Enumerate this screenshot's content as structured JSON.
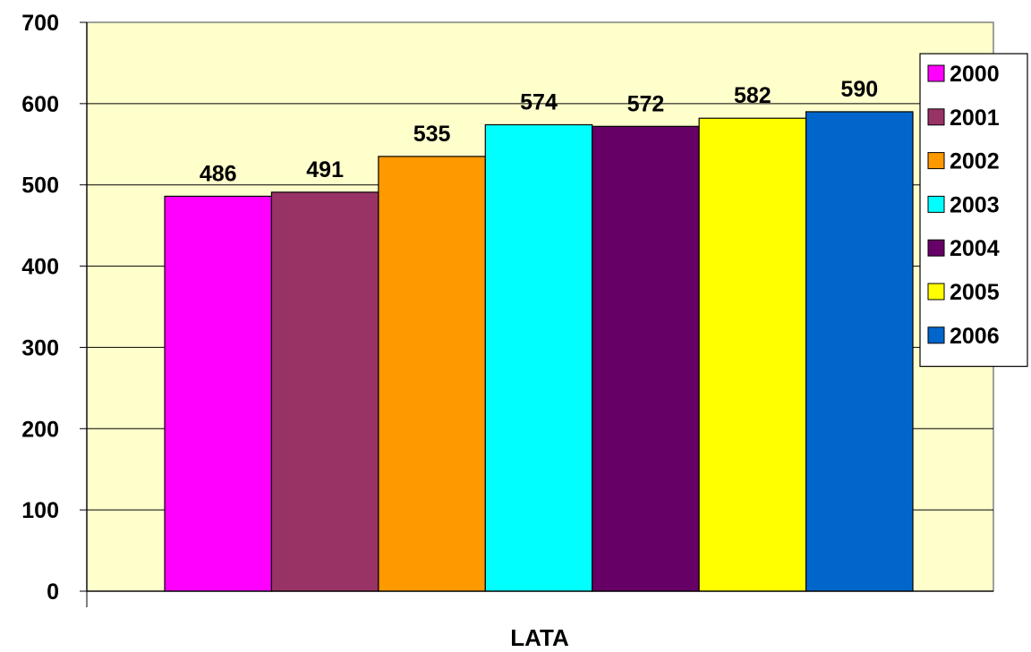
{
  "chart_data": {
    "type": "bar",
    "title": "",
    "xlabel": "LATA",
    "ylabel": "",
    "ylim": [
      0,
      700
    ],
    "yticks": [
      0,
      100,
      200,
      300,
      400,
      500,
      600,
      700
    ],
    "grid": true,
    "legend_position": "right",
    "plot_background": "#FFFFCC",
    "series": [
      {
        "name": "2000",
        "value": 486,
        "color": "#FF00FF"
      },
      {
        "name": "2001",
        "value": 491,
        "color": "#993366"
      },
      {
        "name": "2002",
        "value": 535,
        "color": "#FF9900"
      },
      {
        "name": "2003",
        "value": 574,
        "color": "#00FFFF"
      },
      {
        "name": "2004",
        "value": 572,
        "color": "#660066"
      },
      {
        "name": "2005",
        "value": 582,
        "color": "#FFFF00"
      },
      {
        "name": "2006",
        "value": 590,
        "color": "#0066CC"
      }
    ]
  }
}
